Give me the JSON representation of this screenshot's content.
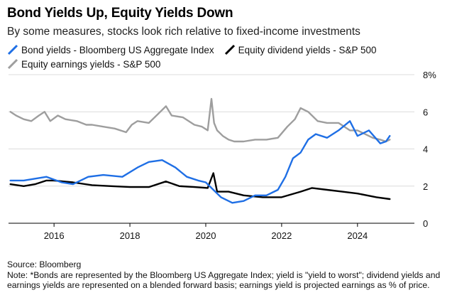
{
  "header": {
    "title": "Bond Yields Up, Equity Yields Down",
    "subtitle": "By some measures, stocks look rich relative to fixed-income investments"
  },
  "legend": {
    "items": [
      {
        "label": "Bond yields - Bloomberg US Aggregate Index",
        "color": "#1f6fe5"
      },
      {
        "label": "Equity dividend yields - S&P 500",
        "color": "#000000"
      },
      {
        "label": "Equity earnings yields - S&P 500",
        "color": "#9e9e9e"
      }
    ]
  },
  "footer": {
    "source": "Source: Bloomberg",
    "note": "Note: *Bonds are represented by the Bloomberg US Aggregate Index; yield is \"yield to worst\"; dividend yields and earnings yields are represented on a blended forward basis; earnings yield is projected earnings as % of price."
  },
  "chart_data": {
    "type": "line",
    "xlim": [
      2014.8,
      2025.5
    ],
    "ylim": [
      0,
      8
    ],
    "x_ticks": [
      {
        "value": 2016,
        "label": "2016"
      },
      {
        "value": 2018,
        "label": "2018"
      },
      {
        "value": 2020,
        "label": "2020"
      },
      {
        "value": 2022,
        "label": "2022"
      },
      {
        "value": 2024,
        "label": "2024"
      }
    ],
    "y_ticks": [
      {
        "value": 8,
        "label": "8%"
      },
      {
        "value": 6,
        "label": "6"
      },
      {
        "value": 4,
        "label": "4"
      },
      {
        "value": 2,
        "label": "2"
      },
      {
        "value": 0,
        "label": "0"
      }
    ],
    "grid": true,
    "series": [
      {
        "name": "Equity earnings yields - S&P 500",
        "color": "#9e9e9e",
        "x": [
          2014.85,
          2015.0,
          2015.2,
          2015.4,
          2015.6,
          2015.75,
          2015.9,
          2016.1,
          2016.3,
          2016.6,
          2016.85,
          2017.0,
          2017.3,
          2017.6,
          2017.9,
          2018.05,
          2018.2,
          2018.5,
          2018.75,
          2018.95,
          2019.1,
          2019.4,
          2019.7,
          2019.9,
          2020.05,
          2020.15,
          2020.22,
          2020.3,
          2020.45,
          2020.6,
          2020.75,
          2021.0,
          2021.3,
          2021.6,
          2021.9,
          2022.15,
          2022.35,
          2022.5,
          2022.7,
          2022.8,
          2022.95,
          2023.2,
          2023.5,
          2023.8,
          2024.0,
          2024.2,
          2024.4,
          2024.6,
          2024.75,
          2024.85
        ],
        "values": [
          6.0,
          5.8,
          5.6,
          5.5,
          5.8,
          6.0,
          5.5,
          5.8,
          5.6,
          5.5,
          5.3,
          5.3,
          5.2,
          5.1,
          4.9,
          5.3,
          5.5,
          5.4,
          5.9,
          6.3,
          5.8,
          5.7,
          5.3,
          5.2,
          5.0,
          6.7,
          5.4,
          5.0,
          4.7,
          4.5,
          4.4,
          4.4,
          4.5,
          4.5,
          4.6,
          5.2,
          5.6,
          6.2,
          6.0,
          5.8,
          5.5,
          5.4,
          5.4,
          5.0,
          5.0,
          4.8,
          4.6,
          4.5,
          4.4,
          4.5
        ]
      },
      {
        "name": "Equity dividend yields - S&P 500",
        "color": "#000000",
        "x": [
          2014.85,
          2015.2,
          2015.5,
          2015.8,
          2016.0,
          2016.5,
          2017.0,
          2017.5,
          2018.0,
          2018.5,
          2018.95,
          2019.3,
          2019.7,
          2020.05,
          2020.2,
          2020.3,
          2020.6,
          2021.0,
          2021.5,
          2022.0,
          2022.5,
          2022.8,
          2023.2,
          2023.6,
          2024.0,
          2024.5,
          2024.85
        ],
        "values": [
          2.1,
          2.0,
          2.1,
          2.3,
          2.3,
          2.2,
          2.05,
          2.0,
          1.95,
          1.95,
          2.25,
          2.0,
          1.95,
          1.9,
          2.7,
          1.7,
          1.7,
          1.5,
          1.4,
          1.4,
          1.7,
          1.9,
          1.8,
          1.7,
          1.6,
          1.4,
          1.3
        ]
      },
      {
        "name": "Bond yields - Bloomberg US Aggregate Index",
        "color": "#1f6fe5",
        "x": [
          2014.85,
          2015.2,
          2015.5,
          2015.8,
          2016.2,
          2016.5,
          2016.9,
          2017.3,
          2017.8,
          2018.2,
          2018.5,
          2018.85,
          2019.2,
          2019.5,
          2019.8,
          2020.0,
          2020.2,
          2020.4,
          2020.7,
          2021.0,
          2021.3,
          2021.6,
          2021.9,
          2022.1,
          2022.3,
          2022.5,
          2022.7,
          2022.9,
          2023.2,
          2023.5,
          2023.8,
          2024.0,
          2024.3,
          2024.6,
          2024.75,
          2024.85
        ],
        "values": [
          2.3,
          2.3,
          2.4,
          2.5,
          2.2,
          2.1,
          2.5,
          2.6,
          2.5,
          3.0,
          3.3,
          3.4,
          3.0,
          2.5,
          2.3,
          2.2,
          1.8,
          1.4,
          1.1,
          1.2,
          1.5,
          1.5,
          1.8,
          2.5,
          3.5,
          3.8,
          4.5,
          4.8,
          4.6,
          5.0,
          5.5,
          4.7,
          5.0,
          4.3,
          4.4,
          4.7
        ]
      }
    ]
  }
}
